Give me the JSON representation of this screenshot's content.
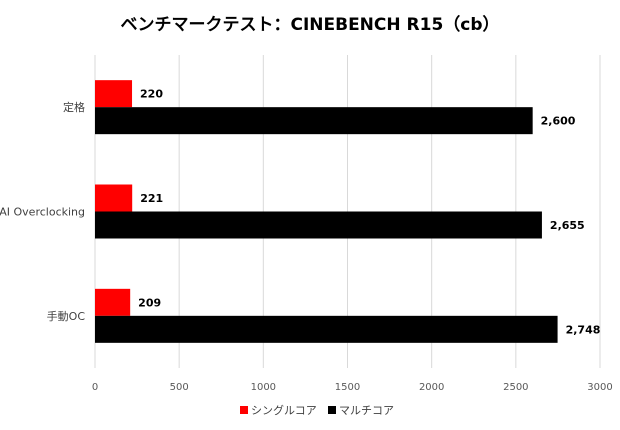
{
  "chart_data": {
    "type": "bar",
    "orientation": "horizontal",
    "title": "ベンチマークテスト：CINEBENCH R15（cb）",
    "categories": [
      "定格",
      "AI Overclocking",
      "手動OC"
    ],
    "series": [
      {
        "name": "シングルコア",
        "color": "#ff0000",
        "values": [
          220,
          221,
          209
        ],
        "labels": [
          "220",
          "221",
          "209"
        ]
      },
      {
        "name": "マルチコア",
        "color": "#000000",
        "values": [
          2600,
          2655,
          2748
        ],
        "labels": [
          "2,600",
          "2,655",
          "2,748"
        ]
      }
    ],
    "xlim": [
      0,
      3000
    ],
    "xticks": [
      0,
      500,
      1000,
      1500,
      2000,
      2500,
      3000
    ],
    "grid": true,
    "legend_position": "bottom"
  }
}
